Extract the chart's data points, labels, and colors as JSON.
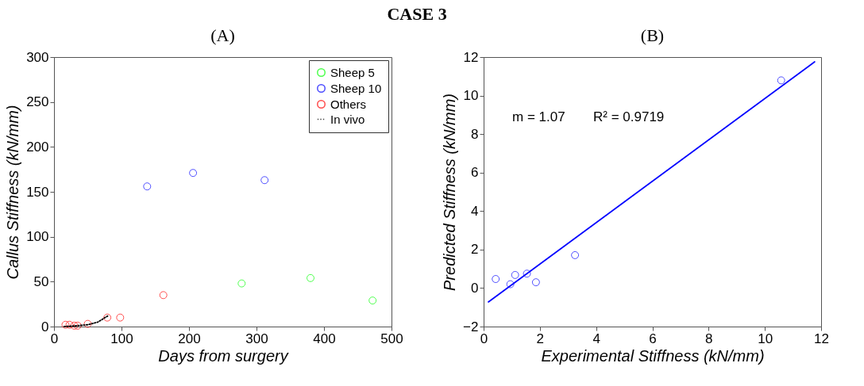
{
  "chart_data": [
    {
      "type": "scatter",
      "title": "CASE 3",
      "subtitle": "(A)",
      "xlabel": "Days from surgery",
      "ylabel": "Callus Stiffness (kN/mm)",
      "xlim": [
        0,
        500
      ],
      "xticks": [
        0,
        100,
        200,
        300,
        400,
        500
      ],
      "ylim": [
        0,
        300
      ],
      "yticks": [
        0,
        50,
        100,
        150,
        200,
        250,
        300
      ],
      "legend": "top right",
      "marker": "circle",
      "series": [
        {
          "name": "Sheep 5",
          "color": "#00ff00",
          "x": [
            278,
            380,
            472
          ],
          "values": [
            48,
            54,
            29
          ]
        },
        {
          "name": "Sheep 10",
          "color": "#0000ff",
          "x": [
            138,
            206,
            312
          ],
          "values": [
            156,
            171,
            163
          ]
        },
        {
          "name": "Others",
          "color": "#ff0000",
          "x": [
            17,
            23,
            30,
            35,
            50,
            79,
            98,
            162
          ],
          "values": [
            2,
            2,
            1,
            1,
            3,
            10,
            10,
            35
          ]
        },
        {
          "name": "In vivo",
          "type": "line",
          "color": "#000000",
          "line_style": "dotted",
          "marker": "none",
          "x": [
            15,
            35,
            50,
            65,
            80
          ],
          "values": [
            0,
            1,
            2,
            5,
            12
          ]
        }
      ]
    },
    {
      "type": "scatter",
      "subtitle": "(B)",
      "xlabel": "Experimental Stiffness (kN/mm)",
      "ylabel": "Predicted Stiffness (kN/mm)",
      "xlim": [
        0,
        12
      ],
      "xticks": [
        0,
        2,
        4,
        6,
        8,
        10,
        12
      ],
      "ylim": [
        -2,
        12
      ],
      "yticks": [
        -2,
        0,
        2,
        4,
        6,
        8,
        10,
        12
      ],
      "marker": "circle",
      "annotations": [
        "m = 1.07",
        "R² = 0.9719"
      ],
      "series": [
        {
          "color": "#0000ff",
          "x": [
            0.43,
            0.95,
            1.12,
            1.54,
            1.86,
            3.25,
            10.58
          ],
          "values": [
            0.47,
            0.2,
            0.68,
            0.75,
            0.3,
            1.71,
            10.79
          ]
        },
        {
          "type": "line",
          "color": "#0000ff",
          "line_style": "solid",
          "marker": "none",
          "x": [
            0.17,
            11.77
          ],
          "values": [
            -0.72,
            11.75
          ]
        }
      ]
    }
  ]
}
